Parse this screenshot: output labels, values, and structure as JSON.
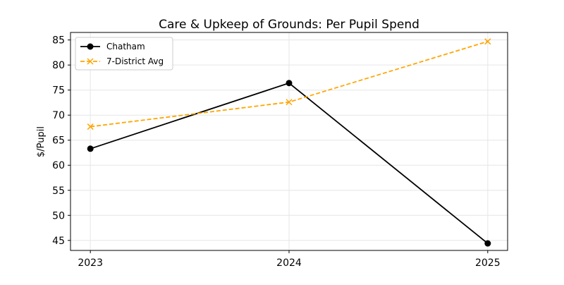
{
  "chart_data": {
    "type": "line",
    "title": "Care & Upkeep of Grounds: Per Pupil Spend",
    "xlabel": "",
    "ylabel": "$/Pupil",
    "x": [
      2023,
      2024,
      2025
    ],
    "xticks": [
      "2023",
      "2024",
      "2025"
    ],
    "yticks": [
      45,
      50,
      55,
      60,
      65,
      70,
      75,
      80,
      85
    ],
    "xlim": [
      2022.9,
      2025.1
    ],
    "ylim": [
      43,
      86.5
    ],
    "grid": true,
    "legend_placement": "top-left",
    "series": [
      {
        "name": "Chatham",
        "values": [
          63.3,
          76.4,
          44.4
        ],
        "color": "#000000",
        "marker": "circle",
        "linestyle": "solid"
      },
      {
        "name": "7-District Avg",
        "values": [
          67.7,
          72.6,
          84.7
        ],
        "color": "#FFA500",
        "marker": "x",
        "linestyle": "dashed"
      }
    ]
  }
}
